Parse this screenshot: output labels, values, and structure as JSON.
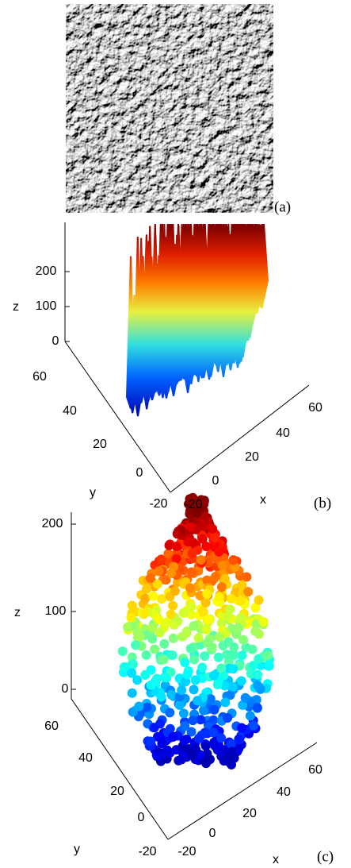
{
  "panels": [
    {
      "label": "(a)"
    },
    {
      "label": "(b)",
      "z_label": "z",
      "y_label": "y",
      "x_label": "x",
      "z_ticks": [
        200,
        100,
        0
      ],
      "y_ticks": [
        60,
        40,
        20,
        0,
        -20
      ],
      "x_ticks": [
        -20,
        0,
        20,
        40,
        60
      ]
    },
    {
      "label": "(c)",
      "z_label": "z",
      "y_label": "y",
      "x_label": "x",
      "z_ticks": [
        200,
        100,
        0
      ],
      "y_ticks": [
        60,
        40,
        20,
        0,
        -20
      ],
      "x_ticks": [
        -20,
        0,
        20,
        40,
        60
      ]
    }
  ]
}
